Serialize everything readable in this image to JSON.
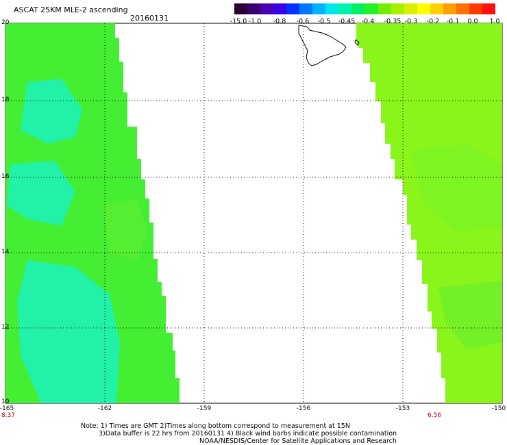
{
  "header": {
    "title": "ASCAT 25KM MLE-2 ascending",
    "date": "20160131"
  },
  "colorbar": {
    "tick_labels": [
      "-15.0",
      "-1.0",
      "-0.8",
      "-0.6",
      "-0.5",
      "-0.45",
      "-0.4",
      "-0.35",
      "-0.3",
      "-0.2",
      "-0.1",
      "0.0",
      "1.0"
    ],
    "colors": [
      "#2b0033",
      "#3b0070",
      "#4a00b0",
      "#3a00e6",
      "#0033ff",
      "#0077ff",
      "#00b3ff",
      "#00e5e5",
      "#00f2b0",
      "#00f060",
      "#28f028",
      "#70f000",
      "#a8f000",
      "#d8f000",
      "#ffff00",
      "#ffd000",
      "#ffa000",
      "#ff7000",
      "#ff3a00",
      "#ff1010"
    ]
  },
  "map": {
    "y_axis_labels": [
      "20",
      "18",
      "16",
      "14",
      "12",
      "10"
    ],
    "x_axis_labels": [
      "-165",
      "-162",
      "-159",
      "-156",
      "-153",
      "-150"
    ],
    "swath_colors": {
      "base_left": "#44ee33",
      "cyan": "#22f2a8",
      "lime": "#7ef520",
      "base_right": "#8af51a"
    }
  },
  "pass_times": {
    "left": "8.37",
    "right": "6.56"
  },
  "notes": {
    "line1": "Note: 1) Times are GMT 2)Times along bottom correspond to measurement at 15N",
    "line2": "3)Data buffer is 22 hrs from 20160131 4) Black wind barbs indicate possible contamination",
    "line3": "NOAA/NESDIS/Center for Satellite Applications and Research"
  }
}
